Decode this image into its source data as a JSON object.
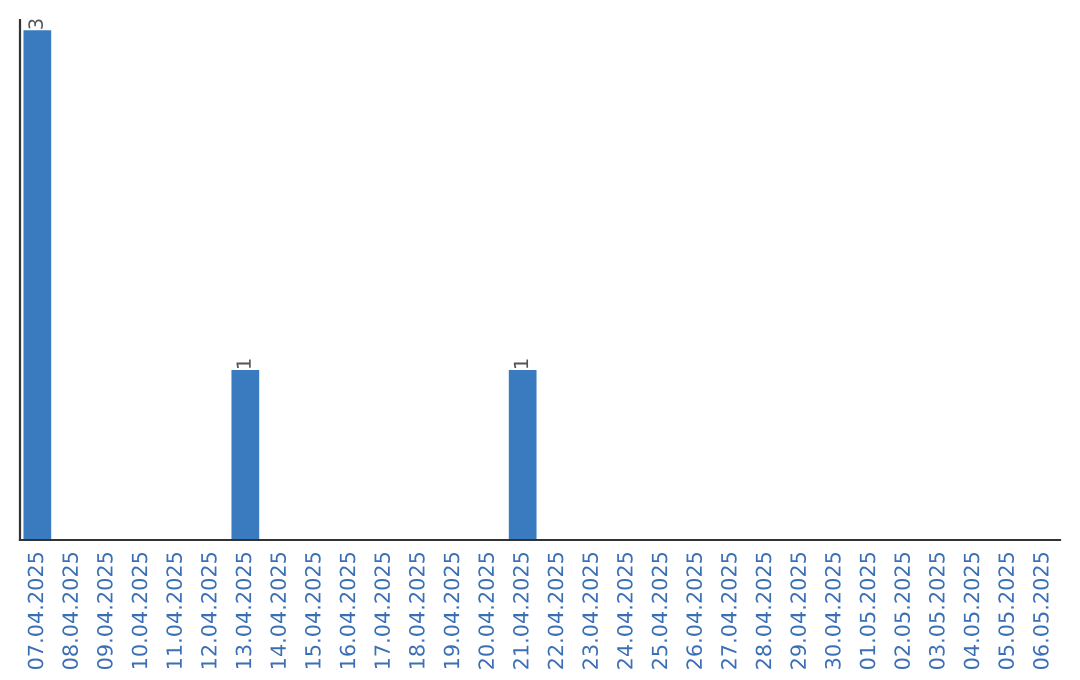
{
  "chart_data": {
    "type": "bar",
    "categories": [
      "07.04.2025",
      "08.04.2025",
      "09.04.2025",
      "10.04.2025",
      "11.04.2025",
      "12.04.2025",
      "13.04.2025",
      "14.04.2025",
      "15.04.2025",
      "16.04.2025",
      "17.04.2025",
      "18.04.2025",
      "19.04.2025",
      "20.04.2025",
      "21.04.2025",
      "22.04.2025",
      "23.04.2025",
      "24.04.2025",
      "25.04.2025",
      "26.04.2025",
      "27.04.2025",
      "28.04.2025",
      "29.04.2025",
      "30.04.2025",
      "01.05.2025",
      "02.05.2025",
      "03.05.2025",
      "04.05.2025",
      "05.05.2025",
      "06.05.2025"
    ],
    "values": [
      3,
      0,
      0,
      0,
      0,
      0,
      1,
      0,
      0,
      0,
      0,
      0,
      0,
      0,
      1,
      0,
      0,
      0,
      0,
      0,
      0,
      0,
      0,
      0,
      0,
      0,
      0,
      0,
      0,
      0
    ],
    "value_labels": [
      "3",
      null,
      null,
      null,
      null,
      null,
      "1",
      null,
      null,
      null,
      null,
      null,
      null,
      null,
      "1",
      null,
      null,
      null,
      null,
      null,
      null,
      null,
      null,
      null,
      null,
      null,
      null,
      null,
      null,
      null
    ],
    "color": "#3a7bc0",
    "tick_labels": "x",
    "grid": false,
    "legend": false
  }
}
